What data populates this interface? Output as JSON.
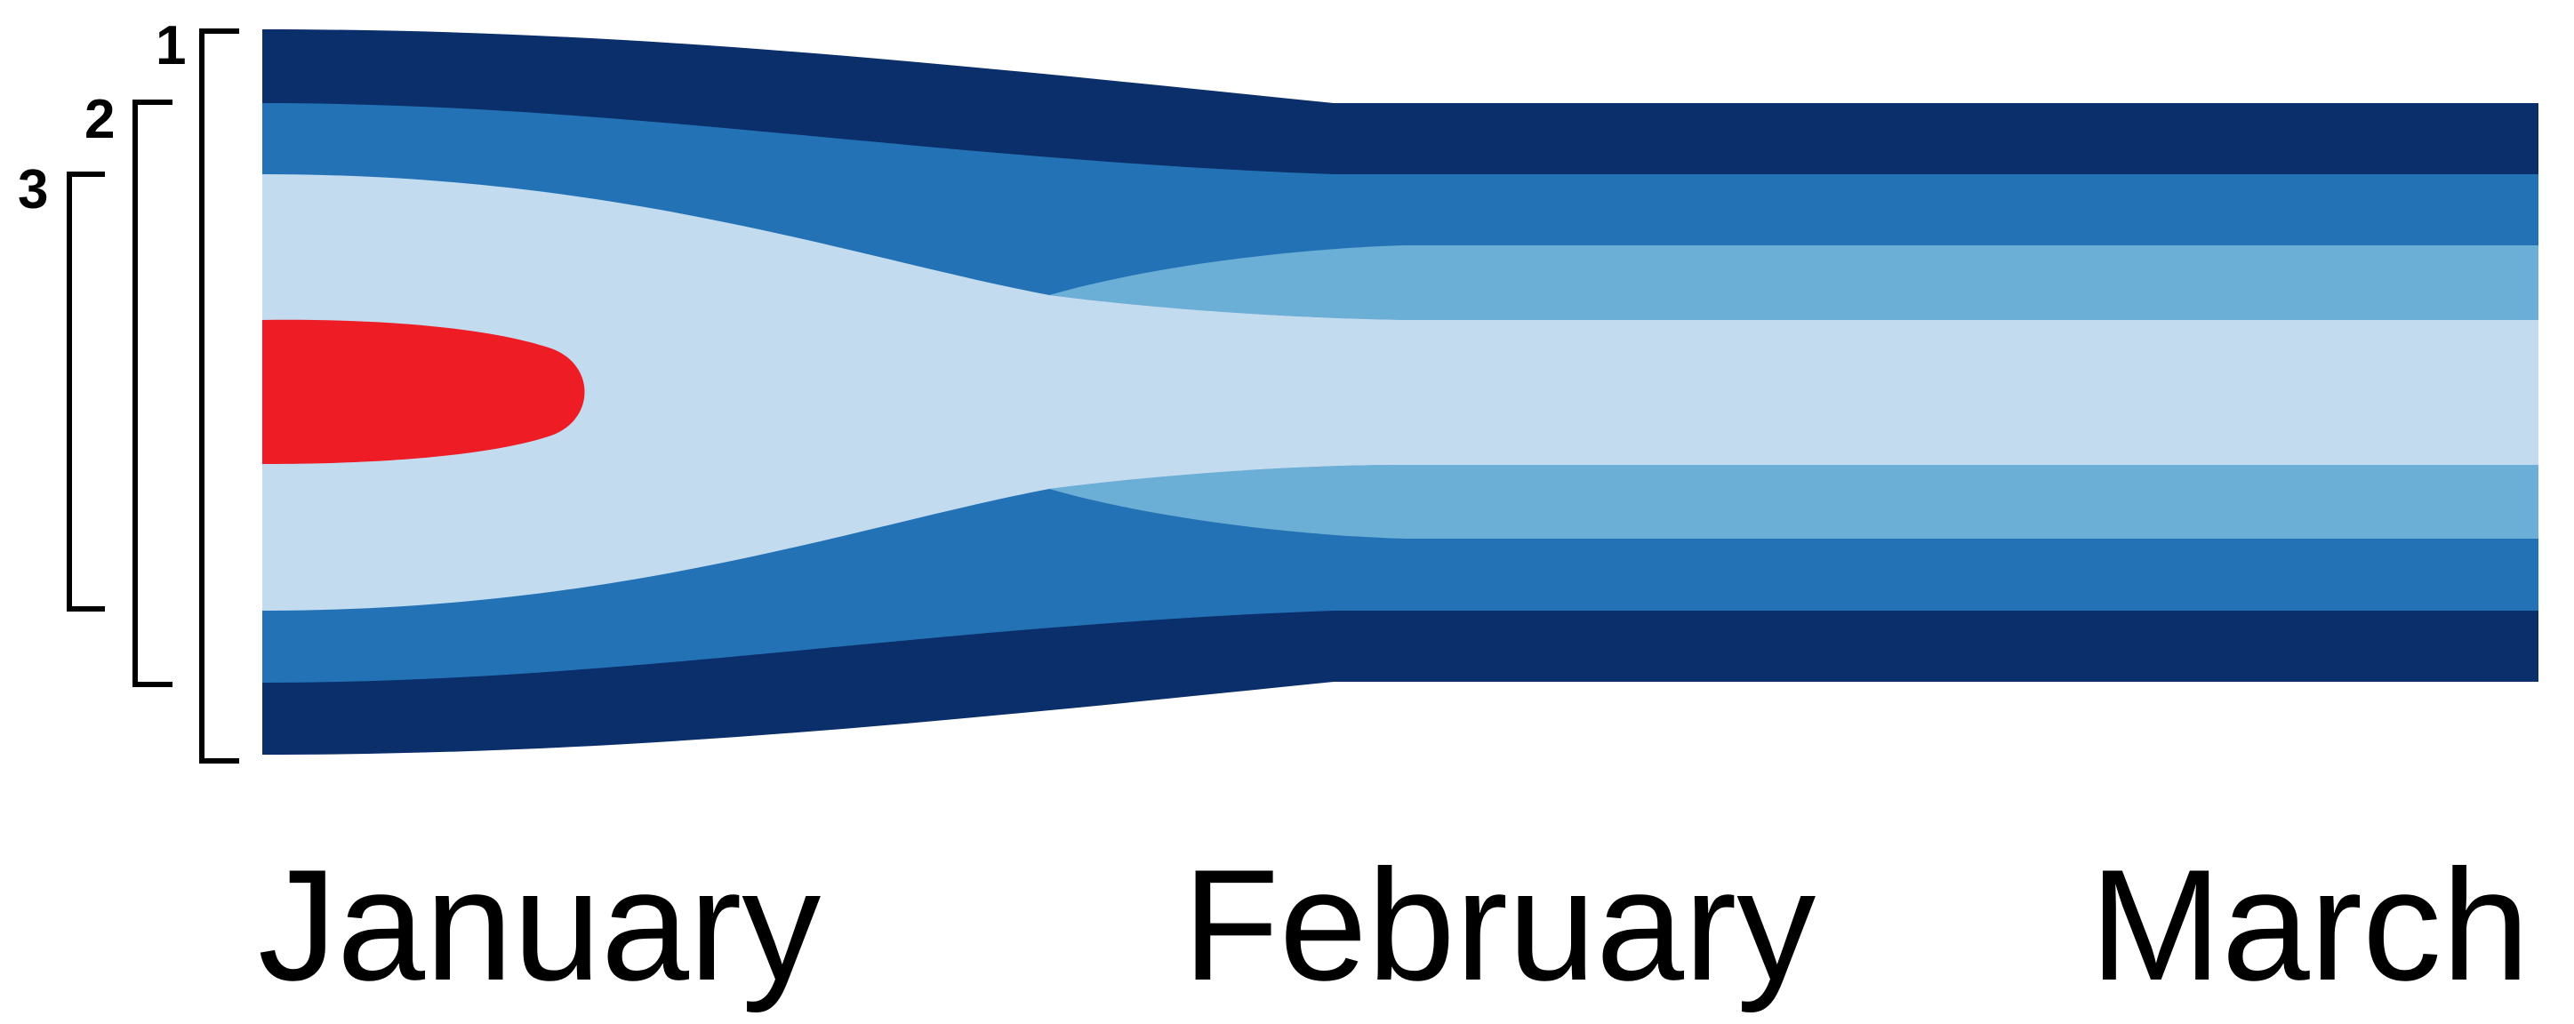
{
  "colors": {
    "band_outer": "#0a2f6b",
    "band_middle": "#2472b6",
    "band_inner": "#6baed6",
    "band_core": "#c3dbef",
    "origin_blob": "#ee1c24",
    "bracket": "#000000",
    "text": "#000000"
  },
  "brackets": [
    {
      "label": "1"
    },
    {
      "label": "2"
    },
    {
      "label": "3"
    }
  ],
  "months": [
    "January",
    "February",
    "March"
  ]
}
